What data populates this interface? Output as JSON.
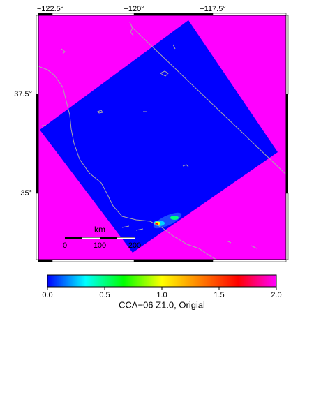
{
  "map": {
    "lon_labels": [
      "−122.5°",
      "−120°",
      "−117.5°"
    ],
    "lat_labels": [
      "37.5°",
      "35°"
    ],
    "scale_bar": {
      "unit": "km",
      "labels": [
        "0",
        "100",
        "200"
      ]
    }
  },
  "colorbar": {
    "label": "CCA−06 Z1.0, Origial",
    "lim": [
      0,
      2
    ],
    "ticks": [
      {
        "value": 0,
        "label": "0.0"
      },
      {
        "value": 0.5,
        "label": "0.5"
      },
      {
        "value": 1,
        "label": "1.0"
      },
      {
        "value": 1.5,
        "label": "1.5"
      },
      {
        "value": 2,
        "label": "2.0"
      }
    ],
    "colormap": [
      "#0000ff",
      "#00ffff",
      "#00ff00",
      "#ffff00",
      "#ff8000",
      "#ff0000",
      "#ff00ff"
    ]
  }
}
